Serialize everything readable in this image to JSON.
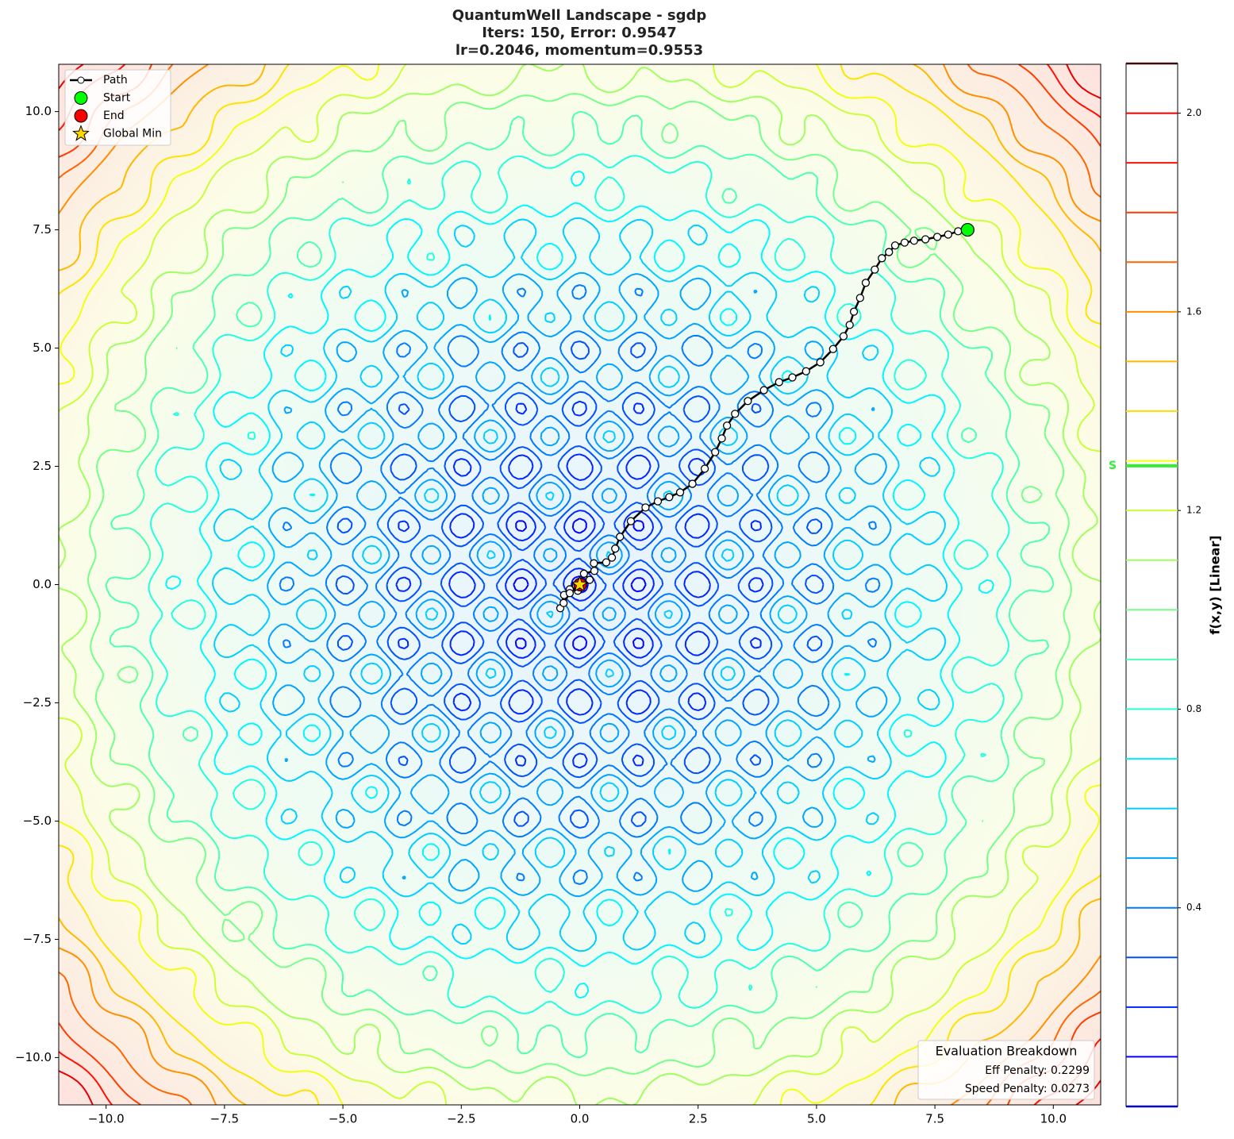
{
  "chart_data": {
    "type": "contour",
    "title": [
      "QuantumWell Landscape - sgdp",
      "Iters: 150, Error: 0.9547",
      "lr=0.2046, momentum=0.9553"
    ],
    "xlim": [
      -11,
      11
    ],
    "ylim": [
      -11,
      11
    ],
    "xticks": [
      {
        "value": -10,
        "label": "−10.0"
      },
      {
        "value": -7.5,
        "label": "−7.5"
      },
      {
        "value": -5,
        "label": "−5.0"
      },
      {
        "value": -2.5,
        "label": "−2.5"
      },
      {
        "value": 0,
        "label": "0.0"
      },
      {
        "value": 2.5,
        "label": "2.5"
      },
      {
        "value": 5,
        "label": "5.0"
      },
      {
        "value": 7.5,
        "label": "7.5"
      },
      {
        "value": 10,
        "label": "10.0"
      }
    ],
    "yticks": [
      {
        "value": -10,
        "label": "−10.0"
      },
      {
        "value": -7.5,
        "label": "−7.5"
      },
      {
        "value": -5,
        "label": "−5.0"
      },
      {
        "value": -2.5,
        "label": "−2.5"
      },
      {
        "value": 0,
        "label": "0.0"
      },
      {
        "value": 2.5,
        "label": "2.5"
      },
      {
        "value": 5,
        "label": "5.0"
      },
      {
        "value": 7.5,
        "label": "7.5"
      },
      {
        "value": 10,
        "label": "10.0"
      }
    ],
    "path": {
      "name": "Path",
      "color": "#000000",
      "x": [
        8.19,
        7.99,
        7.78,
        7.55,
        7.3,
        7.06,
        6.86,
        6.66,
        6.53,
        6.38,
        6.23,
        6.04,
        5.92,
        5.79,
        5.7,
        5.57,
        5.35,
        5.08,
        4.78,
        4.49,
        4.21,
        3.89,
        3.55,
        3.28,
        3.11,
        3.0,
        2.86,
        2.64,
        2.38,
        2.12,
        1.89,
        1.65,
        1.39,
        1.08,
        0.85,
        0.75,
        0.68,
        0.56,
        0.3,
        0.31,
        0.09,
        0.21,
        -0.04,
        -0.21,
        -0.33,
        -0.41,
        -0.34,
        -0.21,
        -0.08,
        0.01
      ],
      "y": [
        7.5,
        7.47,
        7.4,
        7.35,
        7.3,
        7.27,
        7.23,
        7.17,
        7.03,
        6.9,
        6.66,
        6.38,
        6.06,
        5.77,
        5.49,
        5.25,
        4.98,
        4.7,
        4.51,
        4.38,
        4.28,
        4.11,
        3.88,
        3.61,
        3.36,
        3.09,
        2.8,
        2.45,
        2.13,
        1.95,
        1.85,
        1.76,
        1.63,
        1.34,
        1.01,
        0.76,
        0.57,
        0.47,
        0.45,
        0.29,
        0.23,
        0.1,
        -0.13,
        -0.1,
        -0.22,
        -0.5,
        -0.39,
        -0.18,
        -0.02,
        0.0
      ]
    },
    "start": {
      "name": "Start",
      "color": "#00ff00",
      "x": 8.19,
      "y": 7.5
    },
    "end": {
      "name": "End",
      "color": "#ff0000",
      "x": 0.01,
      "y": 0.0
    },
    "global_min": {
      "name": "Global Min",
      "color": "#ffd700",
      "x": 0,
      "y": 0
    },
    "legend": "upper left",
    "colorbar": {
      "label": "f(x,y) [Linear]",
      "lim": [
        0,
        2.1
      ],
      "ticks": [
        0.4,
        0.8,
        1.2,
        1.6,
        {
          "value": 2.0,
          "label": "2.0"
        }
      ],
      "levels": [
        0.1,
        0.2,
        0.3,
        0.4,
        0.5,
        0.6,
        0.7,
        0.8,
        0.9,
        1.0,
        1.1,
        1.2,
        1.3,
        1.4,
        1.5,
        1.6,
        1.7,
        1.8,
        1.9,
        2.0
      ],
      "start_marker": {
        "label": "S",
        "value": 1.29,
        "color": "#33ee33"
      }
    },
    "annotation": {
      "title": "Evaluation Breakdown",
      "lines": [
        "Eff Penalty: 0.2299",
        "Speed Penalty: 0.0273"
      ]
    }
  }
}
